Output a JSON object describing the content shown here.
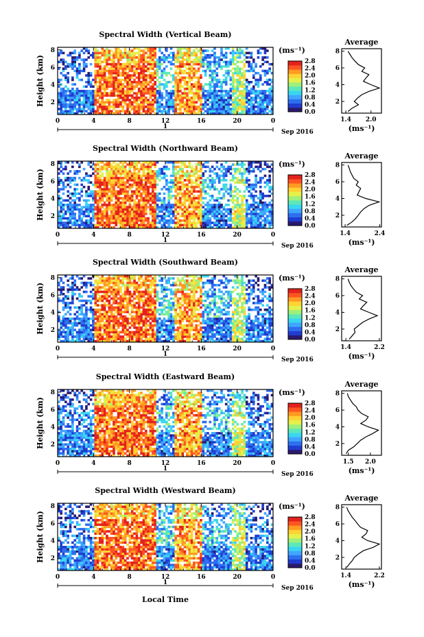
{
  "chart_data": {
    "type": "heatmap",
    "x_label": "Local Time",
    "y_label": "Height (km)",
    "x_ticks": [
      "0",
      "4",
      "8",
      "12",
      "16",
      "20",
      "0"
    ],
    "x_range_hours": [
      0,
      24
    ],
    "y_ticks": [
      "2",
      "4",
      "6",
      "8"
    ],
    "y_range_km": [
      0.6,
      8.3
    ],
    "day_label": "1",
    "date_label": "Sep 2016",
    "colorbar_unit": "(ms⁻¹)",
    "colorbar_ticks": [
      "0.0",
      "0.4",
      "0.8",
      "1.2",
      "1.6",
      "2.0",
      "2.4",
      "2.8"
    ],
    "colorbar_range": [
      0.0,
      2.8
    ],
    "colormap": [
      "#2a1a6e",
      "#1f3dd0",
      "#2d6ff0",
      "#3fa6ff",
      "#39d6f0",
      "#5ee8b8",
      "#9ff07a",
      "#e6f04a",
      "#ffd233",
      "#ff9a22",
      "#ff5522",
      "#e3221c"
    ],
    "average_title": "Average",
    "average_xlabel": "(ms⁻¹)",
    "average_y_ticks": [
      "2",
      "4",
      "6",
      "8"
    ],
    "panels": [
      {
        "title": "Spectral Width (Vertical Beam)",
        "colorbar_ticks": [
          "0.0",
          "0.4",
          "0.8",
          "1.2",
          "1.6",
          "2.0",
          "2.4",
          "2.8"
        ],
        "average_x_ticks": [
          "1.4",
          "2.0"
        ],
        "average_xlim": [
          1.3,
          2.25
        ],
        "average_profile": {
          "height_km": [
            0.8,
            1.2,
            1.6,
            2.0,
            2.4,
            2.8,
            3.2,
            3.6,
            4.0,
            4.4,
            4.8,
            5.2,
            5.6,
            6.0,
            6.4,
            6.8,
            7.2,
            7.6,
            8.0
          ],
          "width": [
            1.45,
            1.55,
            1.7,
            1.6,
            1.68,
            1.78,
            1.95,
            2.2,
            2.0,
            1.82,
            1.88,
            1.95,
            1.78,
            1.85,
            1.7,
            1.62,
            1.55,
            1.5,
            1.45
          ]
        }
      },
      {
        "title": "Spectral Width (Northward Beam)",
        "colorbar_ticks": [
          "0.0",
          "0.4",
          "0.8",
          "1.2",
          "1.6",
          "2.0",
          "2.4",
          "2.8"
        ],
        "average_x_ticks": [
          "1.4",
          "2.4"
        ],
        "average_xlim": [
          1.3,
          2.45
        ],
        "average_profile": {
          "height_km": [
            0.8,
            1.2,
            1.6,
            2.0,
            2.4,
            2.8,
            3.2,
            3.6,
            4.0,
            4.4,
            4.8,
            5.2,
            5.6,
            6.0,
            6.4,
            6.8,
            7.2,
            7.6,
            8.0
          ],
          "width": [
            1.45,
            1.6,
            1.7,
            1.78,
            1.85,
            1.95,
            2.1,
            2.38,
            2.0,
            1.75,
            1.8,
            1.85,
            1.72,
            1.78,
            1.65,
            1.6,
            1.55,
            1.52,
            1.48
          ]
        }
      },
      {
        "title": "Spectral Width (Southward Beam)",
        "colorbar_ticks": [
          "0.0",
          "0.4",
          "0.8",
          "1.2",
          "1.6",
          "2.0",
          "2.4",
          "2.8"
        ],
        "average_x_ticks": [
          "1.4",
          "2.2"
        ],
        "average_xlim": [
          1.3,
          2.25
        ],
        "average_profile": {
          "height_km": [
            0.8,
            1.2,
            1.6,
            2.0,
            2.4,
            2.8,
            3.2,
            3.6,
            4.0,
            4.4,
            4.8,
            5.2,
            5.6,
            6.0,
            6.4,
            6.8,
            7.2,
            7.6,
            8.0
          ],
          "width": [
            1.48,
            1.55,
            1.62,
            1.6,
            1.7,
            1.8,
            1.95,
            2.15,
            1.95,
            1.75,
            1.82,
            1.9,
            1.72,
            1.8,
            1.65,
            1.58,
            1.52,
            1.48,
            1.45
          ]
        }
      },
      {
        "title": "Spectral Width (Eastward Beam)",
        "colorbar_ticks": [
          "0.0",
          "0.4",
          "0.8",
          "1.2",
          "1.6",
          "2.0",
          "2.4",
          "2.8"
        ],
        "average_x_ticks": [
          "1.5",
          "2.0"
        ],
        "average_xlim": [
          1.35,
          2.25
        ],
        "average_profile": {
          "height_km": [
            0.8,
            1.2,
            1.6,
            2.0,
            2.4,
            2.8,
            3.2,
            3.6,
            4.0,
            4.4,
            4.8,
            5.2,
            5.6,
            6.0,
            6.4,
            6.8,
            7.2,
            7.6,
            8.0
          ],
          "width": [
            1.45,
            1.5,
            1.62,
            1.7,
            1.78,
            1.9,
            2.05,
            2.18,
            1.95,
            1.78,
            1.9,
            1.95,
            1.8,
            1.72,
            1.68,
            1.6,
            1.55,
            1.5,
            1.48
          ]
        }
      },
      {
        "title": "Spectral Width (Westward Beam)",
        "colorbar_ticks": [
          "0.0",
          "0.4",
          "0.8",
          "1.2",
          "1.6",
          "2.0",
          "2.4",
          "2.8"
        ],
        "average_x_ticks": [
          "1.4",
          "2.2"
        ],
        "average_xlim": [
          1.3,
          2.25
        ],
        "average_profile": {
          "height_km": [
            0.8,
            1.2,
            1.6,
            2.0,
            2.4,
            2.8,
            3.2,
            3.6,
            4.0,
            4.4,
            4.8,
            5.2,
            5.6,
            6.0,
            6.4,
            6.8,
            7.2,
            7.6,
            8.0
          ],
          "width": [
            1.42,
            1.48,
            1.55,
            1.6,
            1.7,
            1.82,
            2.05,
            2.2,
            1.92,
            1.78,
            1.88,
            1.92,
            1.75,
            1.68,
            1.62,
            1.55,
            1.5,
            1.45,
            1.42
          ]
        }
      }
    ]
  }
}
